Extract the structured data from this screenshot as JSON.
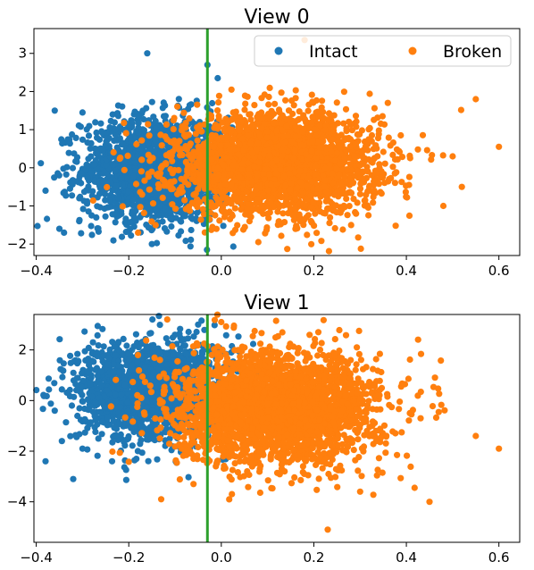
{
  "colors": {
    "intact": "#1f77b4",
    "broken": "#ff7f0e",
    "threshold": "#2ca02c"
  },
  "legend": {
    "items": [
      "Intact",
      "Broken"
    ],
    "placement": "top-right"
  },
  "chart_data": [
    {
      "type": "scatter",
      "title": "View 0",
      "xlabel": "",
      "ylabel": "",
      "xlim": [
        -0.405,
        0.645
      ],
      "ylim": [
        -2.3,
        3.65
      ],
      "xticks": [
        -0.4,
        -0.2,
        0.0,
        0.2,
        0.4,
        0.6
      ],
      "xtick_labels": [
        "−0.4",
        "−0.2",
        "0.0",
        "0.2",
        "0.4",
        "0.6"
      ],
      "yticks": [
        -2,
        -1,
        0,
        1,
        2,
        3
      ],
      "ytick_labels": [
        "−2",
        "−1",
        "0",
        "1",
        "2",
        "3"
      ],
      "vline_x": -0.03,
      "grid": false,
      "series": [
        {
          "name": "Intact",
          "color": "#1f77b4",
          "center": [
            -0.14,
            -0.05
          ],
          "spread": [
            0.08,
            0.7
          ],
          "count": 1700,
          "outliers": [
            [
              -0.38,
              -0.6
            ],
            [
              -0.36,
              1.5
            ],
            [
              -0.35,
              -1.6
            ],
            [
              -0.34,
              -1.7
            ],
            [
              -0.16,
              3.0
            ],
            [
              -0.15,
              -2.0
            ],
            [
              -0.03,
              2.7
            ],
            [
              -0.3,
              1.45
            ]
          ]
        },
        {
          "name": "Broken",
          "color": "#ff7f0e",
          "center": [
            0.12,
            0.1
          ],
          "spread": [
            0.11,
            0.65
          ],
          "count": 2700,
          "outliers": [
            [
              0.18,
              3.35
            ],
            [
              0.6,
              0.55
            ],
            [
              0.55,
              1.8
            ],
            [
              0.5,
              0.3
            ],
            [
              0.52,
              -0.5
            ],
            [
              -0.18,
              -1.7
            ],
            [
              0.36,
              1.7
            ],
            [
              0.48,
              -1.0
            ]
          ]
        }
      ]
    },
    {
      "type": "scatter",
      "title": "View 1",
      "xlabel": "",
      "ylabel": "",
      "xlim": [
        -0.405,
        0.645
      ],
      "ylim": [
        -5.6,
        3.4
      ],
      "xticks": [
        -0.4,
        -0.2,
        0.0,
        0.2,
        0.4,
        0.6
      ],
      "xtick_labels": [
        "−0.4",
        "−0.2",
        "0.0",
        "0.2",
        "0.4",
        "0.6"
      ],
      "yticks": [
        -4,
        -2,
        0,
        2
      ],
      "ytick_labels": [
        "−4",
        "−2",
        "0",
        "2"
      ],
      "vline_x": -0.03,
      "grid": false,
      "series": [
        {
          "name": "Intact",
          "color": "#1f77b4",
          "center": [
            -0.15,
            0.4
          ],
          "spread": [
            0.08,
            1.0
          ],
          "count": 1700,
          "outliers": [
            [
              -0.38,
              -2.4
            ],
            [
              -0.36,
              -0.4
            ],
            [
              -0.32,
              -3.1
            ],
            [
              -0.3,
              -1.9
            ],
            [
              -0.05,
              3.0
            ],
            [
              -0.1,
              2.6
            ]
          ]
        },
        {
          "name": "Broken",
          "color": "#ff7f0e",
          "center": [
            0.12,
            -0.3
          ],
          "spread": [
            0.11,
            1.1
          ],
          "count": 2700,
          "outliers": [
            [
              0.23,
              -5.1
            ],
            [
              0.45,
              -4.0
            ],
            [
              0.6,
              -1.9
            ],
            [
              0.55,
              -1.4
            ],
            [
              -0.13,
              -3.9
            ],
            [
              -0.06,
              -3.3
            ],
            [
              0.3,
              -3.6
            ],
            [
              0.0,
              3.1
            ]
          ]
        }
      ]
    }
  ]
}
